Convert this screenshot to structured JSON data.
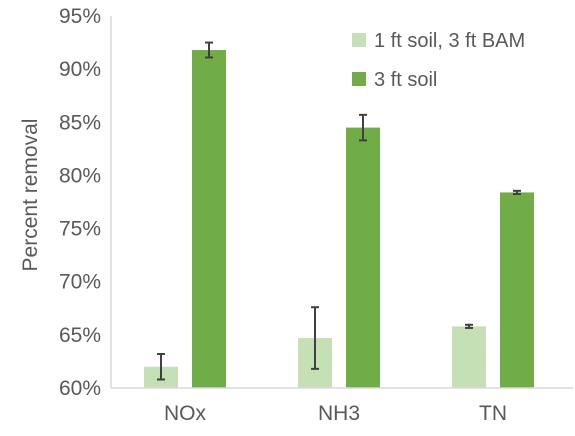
{
  "colors": {
    "series_light": "#c5e0b4",
    "series_dark": "#70ad47",
    "axis": "#d9d9d9",
    "text": "#595959",
    "error_bar": "#404040"
  },
  "chart_data": {
    "type": "bar",
    "title": "",
    "xlabel": "",
    "ylabel": "Percent removal",
    "ylim": [
      0.6,
      0.95
    ],
    "yticks": [
      0.6,
      0.65,
      0.7,
      0.75,
      0.8,
      0.85,
      0.9,
      0.95
    ],
    "ytick_labels": [
      "60%",
      "65%",
      "70%",
      "75%",
      "80%",
      "85%",
      "90%",
      "95%"
    ],
    "categories": [
      "NOx",
      "NH3",
      "TN"
    ],
    "grid": false,
    "legend_position": "top-right",
    "series": [
      {
        "name": "1 ft soil, 3 ft BAM",
        "color": "#c5e0b4",
        "values": [
          0.62,
          0.647,
          0.658
        ],
        "error": [
          0.012,
          0.029,
          0.0015
        ]
      },
      {
        "name": "3 ft soil",
        "color": "#70ad47",
        "values": [
          0.918,
          0.845,
          0.784
        ],
        "error": [
          0.007,
          0.012,
          0.0015
        ]
      }
    ]
  }
}
